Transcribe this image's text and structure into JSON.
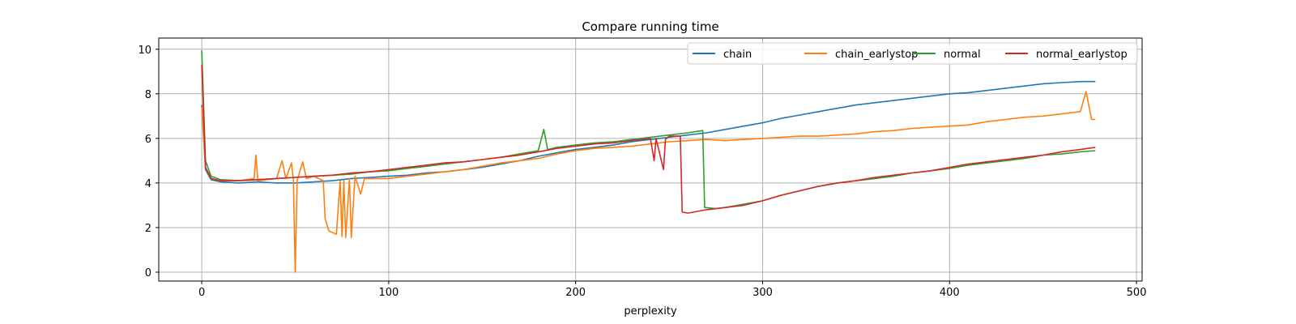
{
  "chart_data": {
    "type": "line",
    "title": "Compare running time",
    "xlabel": "perplexity",
    "ylabel": "",
    "xlim": [
      -23,
      503
    ],
    "ylim": [
      -0.4,
      10.5
    ],
    "xticks": [
      0,
      100,
      200,
      300,
      400,
      500
    ],
    "yticks": [
      0,
      2,
      4,
      6,
      8,
      10
    ],
    "grid": true,
    "legend": "top-right",
    "series": [
      {
        "name": "chain",
        "color": "#1f77b4",
        "points": [
          [
            0,
            7.5
          ],
          [
            2,
            4.6
          ],
          [
            5,
            4.15
          ],
          [
            10,
            4.05
          ],
          [
            20,
            4.0
          ],
          [
            30,
            4.05
          ],
          [
            40,
            4.0
          ],
          [
            50,
            4.0
          ],
          [
            60,
            4.05
          ],
          [
            70,
            4.1
          ],
          [
            80,
            4.2
          ],
          [
            90,
            4.25
          ],
          [
            100,
            4.3
          ],
          [
            110,
            4.35
          ],
          [
            120,
            4.45
          ],
          [
            130,
            4.5
          ],
          [
            140,
            4.6
          ],
          [
            150,
            4.7
          ],
          [
            160,
            4.85
          ],
          [
            170,
            5.0
          ],
          [
            180,
            5.2
          ],
          [
            190,
            5.35
          ],
          [
            200,
            5.5
          ],
          [
            210,
            5.6
          ],
          [
            220,
            5.7
          ],
          [
            230,
            5.85
          ],
          [
            240,
            5.95
          ],
          [
            250,
            6.05
          ],
          [
            260,
            6.15
          ],
          [
            270,
            6.25
          ],
          [
            280,
            6.4
          ],
          [
            290,
            6.55
          ],
          [
            300,
            6.7
          ],
          [
            310,
            6.9
          ],
          [
            320,
            7.05
          ],
          [
            330,
            7.2
          ],
          [
            340,
            7.35
          ],
          [
            350,
            7.5
          ],
          [
            360,
            7.6
          ],
          [
            370,
            7.7
          ],
          [
            380,
            7.8
          ],
          [
            390,
            7.9
          ],
          [
            400,
            8.0
          ],
          [
            410,
            8.05
          ],
          [
            420,
            8.15
          ],
          [
            430,
            8.25
          ],
          [
            440,
            8.35
          ],
          [
            450,
            8.45
          ],
          [
            460,
            8.5
          ],
          [
            470,
            8.55
          ],
          [
            478,
            8.55
          ]
        ]
      },
      {
        "name": "chain_earlystop",
        "color": "#ff7f0e",
        "points": [
          [
            0,
            7.4
          ],
          [
            2,
            4.7
          ],
          [
            5,
            4.2
          ],
          [
            10,
            4.1
          ],
          [
            20,
            4.1
          ],
          [
            28,
            4.2
          ],
          [
            29,
            5.25
          ],
          [
            30,
            4.1
          ],
          [
            40,
            4.2
          ],
          [
            43,
            5.0
          ],
          [
            45,
            4.2
          ],
          [
            48,
            4.9
          ],
          [
            49,
            4.1
          ],
          [
            50,
            0.0
          ],
          [
            51,
            4.1
          ],
          [
            54,
            4.95
          ],
          [
            56,
            4.2
          ],
          [
            60,
            4.3
          ],
          [
            65,
            4.1
          ],
          [
            66,
            2.4
          ],
          [
            68,
            1.85
          ],
          [
            72,
            1.7
          ],
          [
            74,
            4.1
          ],
          [
            75,
            1.6
          ],
          [
            76,
            4.1
          ],
          [
            77,
            1.55
          ],
          [
            79,
            4.2
          ],
          [
            80,
            1.55
          ],
          [
            82,
            4.3
          ],
          [
            85,
            3.5
          ],
          [
            87,
            4.2
          ],
          [
            90,
            4.2
          ],
          [
            100,
            4.2
          ],
          [
            110,
            4.3
          ],
          [
            120,
            4.4
          ],
          [
            130,
            4.5
          ],
          [
            140,
            4.6
          ],
          [
            150,
            4.75
          ],
          [
            160,
            4.9
          ],
          [
            170,
            5.0
          ],
          [
            180,
            5.1
          ],
          [
            190,
            5.3
          ],
          [
            200,
            5.45
          ],
          [
            210,
            5.55
          ],
          [
            220,
            5.6
          ],
          [
            230,
            5.65
          ],
          [
            240,
            5.75
          ],
          [
            250,
            5.85
          ],
          [
            260,
            5.9
          ],
          [
            270,
            5.95
          ],
          [
            280,
            5.9
          ],
          [
            290,
            5.95
          ],
          [
            300,
            6.0
          ],
          [
            310,
            6.05
          ],
          [
            320,
            6.1
          ],
          [
            330,
            6.1
          ],
          [
            340,
            6.15
          ],
          [
            350,
            6.2
          ],
          [
            360,
            6.3
          ],
          [
            370,
            6.35
          ],
          [
            380,
            6.45
          ],
          [
            390,
            6.5
          ],
          [
            400,
            6.55
          ],
          [
            410,
            6.6
          ],
          [
            420,
            6.75
          ],
          [
            430,
            6.85
          ],
          [
            440,
            6.95
          ],
          [
            450,
            7.0
          ],
          [
            460,
            7.1
          ],
          [
            470,
            7.2
          ],
          [
            473,
            8.1
          ],
          [
            476,
            6.85
          ],
          [
            478,
            6.85
          ]
        ]
      },
      {
        "name": "normal",
        "color": "#2ca02c",
        "points": [
          [
            0,
            9.95
          ],
          [
            2,
            5.0
          ],
          [
            5,
            4.3
          ],
          [
            10,
            4.15
          ],
          [
            20,
            4.1
          ],
          [
            30,
            4.15
          ],
          [
            40,
            4.2
          ],
          [
            50,
            4.25
          ],
          [
            60,
            4.3
          ],
          [
            70,
            4.35
          ],
          [
            80,
            4.4
          ],
          [
            90,
            4.5
          ],
          [
            100,
            4.55
          ],
          [
            110,
            4.65
          ],
          [
            120,
            4.75
          ],
          [
            130,
            4.85
          ],
          [
            140,
            4.95
          ],
          [
            150,
            5.05
          ],
          [
            160,
            5.15
          ],
          [
            170,
            5.3
          ],
          [
            180,
            5.45
          ],
          [
            183,
            6.4
          ],
          [
            185,
            5.5
          ],
          [
            190,
            5.6
          ],
          [
            200,
            5.7
          ],
          [
            210,
            5.8
          ],
          [
            220,
            5.85
          ],
          [
            230,
            5.95
          ],
          [
            240,
            6.05
          ],
          [
            250,
            6.15
          ],
          [
            260,
            6.25
          ],
          [
            268,
            6.35
          ],
          [
            269,
            2.9
          ],
          [
            275,
            2.85
          ],
          [
            280,
            2.9
          ],
          [
            290,
            3.05
          ],
          [
            300,
            3.2
          ],
          [
            310,
            3.45
          ],
          [
            320,
            3.65
          ],
          [
            330,
            3.85
          ],
          [
            340,
            4.0
          ],
          [
            350,
            4.1
          ],
          [
            360,
            4.2
          ],
          [
            370,
            4.3
          ],
          [
            380,
            4.45
          ],
          [
            390,
            4.55
          ],
          [
            400,
            4.65
          ],
          [
            410,
            4.8
          ],
          [
            420,
            4.9
          ],
          [
            430,
            5.0
          ],
          [
            440,
            5.1
          ],
          [
            447,
            5.2
          ],
          [
            450,
            5.25
          ],
          [
            460,
            5.3
          ],
          [
            470,
            5.4
          ],
          [
            478,
            5.45
          ]
        ]
      },
      {
        "name": "normal_earlystop",
        "color": "#d62728",
        "points": [
          [
            0,
            9.3
          ],
          [
            2,
            4.7
          ],
          [
            5,
            4.2
          ],
          [
            10,
            4.1
          ],
          [
            20,
            4.1
          ],
          [
            30,
            4.15
          ],
          [
            40,
            4.2
          ],
          [
            50,
            4.25
          ],
          [
            60,
            4.3
          ],
          [
            70,
            4.35
          ],
          [
            80,
            4.45
          ],
          [
            90,
            4.5
          ],
          [
            100,
            4.6
          ],
          [
            110,
            4.7
          ],
          [
            120,
            4.8
          ],
          [
            130,
            4.9
          ],
          [
            140,
            4.95
          ],
          [
            150,
            5.05
          ],
          [
            160,
            5.15
          ],
          [
            170,
            5.25
          ],
          [
            180,
            5.4
          ],
          [
            190,
            5.55
          ],
          [
            200,
            5.65
          ],
          [
            210,
            5.75
          ],
          [
            220,
            5.8
          ],
          [
            230,
            5.9
          ],
          [
            240,
            6.0
          ],
          [
            242,
            5.0
          ],
          [
            243,
            6.0
          ],
          [
            247,
            4.6
          ],
          [
            248,
            5.95
          ],
          [
            250,
            6.1
          ],
          [
            256,
            6.1
          ],
          [
            257,
            2.7
          ],
          [
            260,
            2.65
          ],
          [
            270,
            2.8
          ],
          [
            280,
            2.9
          ],
          [
            290,
            3.0
          ],
          [
            300,
            3.2
          ],
          [
            310,
            3.45
          ],
          [
            320,
            3.65
          ],
          [
            330,
            3.85
          ],
          [
            340,
            4.0
          ],
          [
            350,
            4.1
          ],
          [
            360,
            4.25
          ],
          [
            370,
            4.35
          ],
          [
            380,
            4.45
          ],
          [
            390,
            4.55
          ],
          [
            400,
            4.7
          ],
          [
            410,
            4.85
          ],
          [
            420,
            4.95
          ],
          [
            430,
            5.05
          ],
          [
            440,
            5.15
          ],
          [
            450,
            5.25
          ],
          [
            460,
            5.4
          ],
          [
            470,
            5.5
          ],
          [
            478,
            5.6
          ]
        ]
      }
    ]
  }
}
